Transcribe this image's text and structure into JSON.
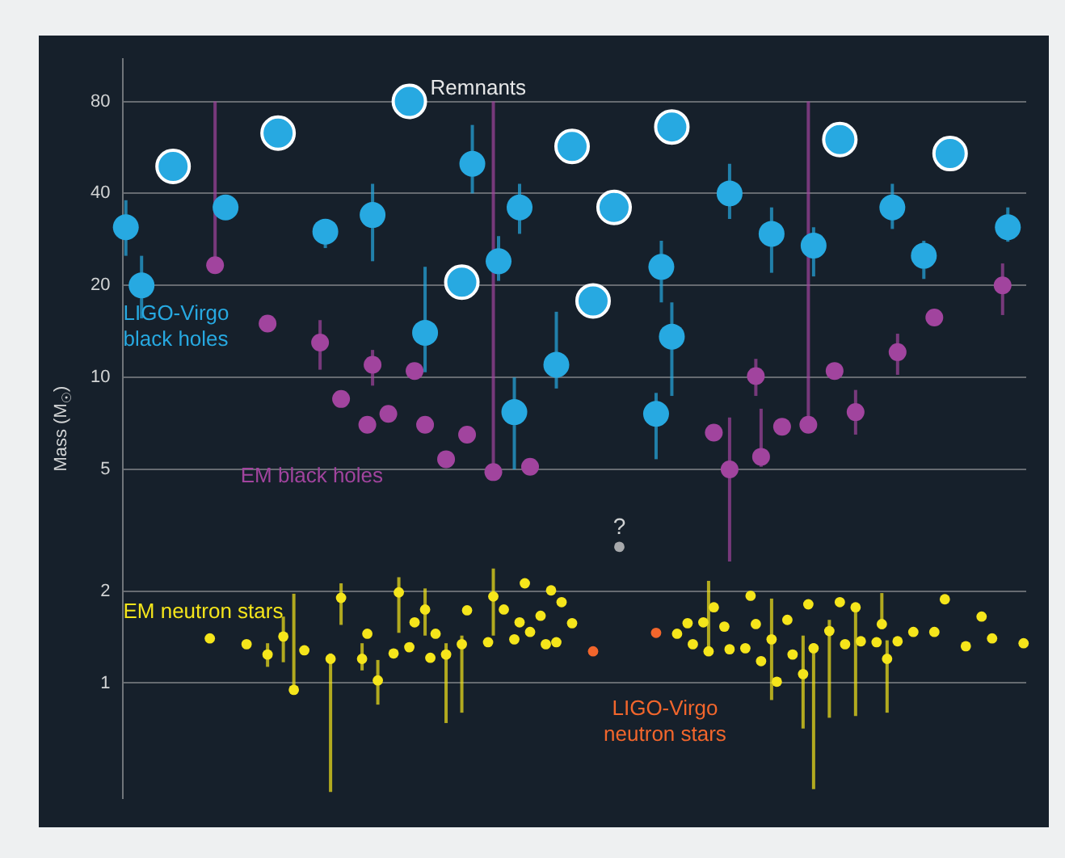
{
  "chart_data": {
    "type": "scatter",
    "ylabel": "Mass (M$_{☉}$)",
    "log": "y",
    "grid": "y",
    "legend": false,
    "tick_labels": "y",
    "marker": "circle",
    "ylim": [
      0.42,
      110
    ],
    "yticks": [
      1,
      2,
      5,
      10,
      20,
      40,
      80
    ],
    "annotations": [
      {
        "text": "?",
        "y": 2.79
      }
    ],
    "categories": [
      null,
      null,
      null,
      null,
      null,
      null,
      null,
      null,
      null,
      null,
      null,
      null,
      null,
      null,
      null,
      null,
      null,
      null,
      null,
      null,
      null,
      null,
      null,
      null,
      null,
      null,
      null,
      null,
      null,
      null,
      null,
      null,
      null,
      null,
      null,
      null,
      null,
      null,
      null,
      null,
      null,
      null,
      null,
      null,
      null,
      null,
      null,
      null,
      null,
      null,
      null,
      null,
      null,
      null,
      null,
      null,
      null,
      null,
      null,
      null,
      null,
      null,
      null,
      null,
      null,
      null,
      null,
      null,
      null,
      null,
      null,
      null,
      null,
      null,
      null,
      null,
      null,
      null,
      null,
      null,
      null,
      null,
      null,
      null,
      null,
      null,
      null,
      null,
      null,
      null,
      null,
      null,
      null,
      null,
      null,
      null,
      null,
      null,
      null,
      null,
      null,
      null,
      null,
      null,
      null,
      null,
      null,
      null,
      null,
      null,
      null,
      null,
      null,
      null,
      null,
      null,
      null,
      null,
      null,
      null,
      null,
      null,
      null,
      null,
      null,
      null,
      null,
      null,
      null,
      null,
      null,
      null,
      null,
      null,
      null,
      null,
      null,
      null,
      null,
      null,
      null,
      null,
      null,
      null,
      null,
      null,
      null,
      null,
      null,
      null,
      null,
      null,
      null,
      null,
      null,
      null,
      null,
      null,
      null,
      null,
      null,
      null,
      null,
      null,
      null,
      null,
      null,
      null,
      null,
      null,
      null,
      null
    ],
    "series": [
      {
        "name": "LIGO-Virgo black holes",
        "color": "#27a9e1",
        "values": [
          31,
          null,
          null,
          20,
          null,
          null,
          null,
          null,
          null,
          null,
          null,
          null,
          null,
          null,
          null,
          null,
          null,
          null,
          null,
          36,
          null,
          null,
          null,
          null,
          null,
          null,
          null,
          null,
          null,
          null,
          null,
          null,
          null,
          null,
          null,
          null,
          null,
          null,
          30,
          null,
          null,
          null,
          null,
          null,
          null,
          null,
          null,
          34,
          null,
          null,
          null,
          null,
          null,
          null,
          null,
          null,
          null,
          14,
          null,
          null,
          null,
          null,
          null,
          null,
          null,
          null,
          50,
          null,
          null,
          null,
          null,
          24,
          null,
          null,
          7.7,
          36,
          null,
          null,
          null,
          null,
          null,
          null,
          11,
          null,
          null,
          null,
          null,
          null,
          null,
          null,
          null,
          null,
          null,
          null,
          null,
          null,
          null,
          null,
          null,
          null,
          null,
          7.6,
          23,
          null,
          13.6,
          null,
          null,
          null,
          null,
          null,
          null,
          null,
          null,
          null,
          null,
          40,
          null,
          null,
          null,
          null,
          null,
          null,
          null,
          29.5,
          null,
          null,
          null,
          null,
          null,
          null,
          null,
          27,
          null,
          null,
          null,
          null,
          null,
          null,
          null,
          null,
          null,
          null,
          null,
          null,
          null,
          null,
          36,
          null,
          null,
          null,
          null,
          null,
          25,
          null,
          null,
          null,
          null,
          null,
          null,
          null,
          null,
          null,
          null,
          null,
          null,
          null,
          null,
          null,
          31,
          null,
          null,
          null
        ],
        "errors": [
          [
            25,
            38
          ],
          null,
          null,
          [
            15.6,
            25
          ],
          null,
          null,
          null,
          null,
          null,
          null,
          null,
          null,
          null,
          null,
          null,
          null,
          null,
          null,
          null,
          null,
          null,
          null,
          null,
          null,
          null,
          null,
          null,
          null,
          null,
          null,
          null,
          null,
          null,
          null,
          null,
          null,
          null,
          null,
          [
            26.5,
            33
          ],
          null,
          null,
          null,
          null,
          null,
          null,
          null,
          null,
          [
            24,
            43
          ],
          null,
          null,
          null,
          null,
          null,
          null,
          null,
          null,
          null,
          [
            10.4,
            23
          ],
          null,
          null,
          null,
          null,
          null,
          null,
          null,
          null,
          [
            40,
            67
          ],
          null,
          null,
          null,
          null,
          [
            20.7,
            29
          ],
          null,
          null,
          [
            5,
            10
          ],
          [
            29.5,
            43
          ],
          null,
          null,
          null,
          null,
          null,
          null,
          [
            9.2,
            16.4
          ],
          null,
          null,
          null,
          null,
          null,
          null,
          null,
          null,
          null,
          null,
          null,
          null,
          null,
          null,
          null,
          null,
          null,
          null,
          [
            5.4,
            8.9
          ],
          [
            17.6,
            28
          ],
          null,
          [
            8.7,
            17.6
          ],
          null,
          null,
          null,
          null,
          null,
          null,
          null,
          null,
          null,
          null,
          [
            33,
            50
          ],
          null,
          null,
          null,
          null,
          null,
          null,
          null,
          [
            22,
            36
          ],
          null,
          null,
          null,
          null,
          null,
          null,
          null,
          [
            21.4,
            31
          ],
          null,
          null,
          null,
          null,
          null,
          null,
          null,
          null,
          null,
          null,
          null,
          null,
          null,
          null,
          [
            30.6,
            43
          ],
          null,
          null,
          null,
          null,
          null,
          [
            21,
            28
          ],
          null,
          null,
          null,
          null,
          null,
          null,
          null,
          null,
          null,
          null,
          null,
          null,
          null,
          null,
          null,
          [
            27.8,
            36
          ],
          null,
          null,
          null
        ]
      },
      {
        "name": "Remnants",
        "color": "#27a9e1",
        "values": [
          null,
          null,
          null,
          null,
          null,
          null,
          null,
          null,
          null,
          49,
          null,
          null,
          null,
          null,
          null,
          null,
          null,
          null,
          null,
          null,
          null,
          null,
          null,
          null,
          null,
          null,
          null,
          null,
          null,
          63,
          null,
          null,
          null,
          null,
          null,
          null,
          null,
          null,
          null,
          null,
          null,
          null,
          null,
          null,
          null,
          null,
          null,
          null,
          null,
          null,
          null,
          null,
          null,
          null,
          80,
          null,
          null,
          null,
          null,
          null,
          null,
          null,
          null,
          null,
          20.5,
          null,
          null,
          null,
          null,
          null,
          null,
          null,
          null,
          null,
          null,
          null,
          null,
          null,
          null,
          null,
          null,
          null,
          null,
          null,
          null,
          57,
          null,
          null,
          null,
          17.8,
          null,
          null,
          null,
          36,
          null,
          null,
          null,
          null,
          null,
          null,
          null,
          null,
          null,
          null,
          66,
          null,
          null,
          null,
          null,
          null,
          null,
          null,
          null,
          null,
          null,
          null,
          null,
          null,
          null,
          null,
          null,
          null,
          null,
          null,
          null,
          null,
          null,
          null,
          null,
          null,
          null,
          null,
          null,
          null,
          null,
          null,
          60,
          null,
          null,
          null,
          null,
          null,
          null,
          null,
          null,
          null,
          null,
          null,
          null,
          null,
          null,
          null,
          null,
          null,
          null,
          null,
          null,
          54,
          null,
          null,
          null,
          null,
          null,
          null,
          null,
          null,
          null,
          null,
          null,
          null,
          null,
          null
        ]
      },
      {
        "name": "EM black holes",
        "color": "#a1449e",
        "values": [
          null,
          null,
          null,
          null,
          null,
          null,
          null,
          null,
          null,
          null,
          null,
          null,
          null,
          null,
          null,
          null,
          null,
          23.3,
          null,
          null,
          null,
          null,
          null,
          null,
          null,
          null,
          null,
          15,
          null,
          null,
          null,
          null,
          null,
          null,
          null,
          null,
          null,
          13,
          null,
          null,
          null,
          8.5,
          null,
          null,
          null,
          null,
          7,
          11,
          null,
          null,
          7.6,
          null,
          null,
          null,
          null,
          10.5,
          null,
          7,
          null,
          null,
          null,
          5.4,
          null,
          null,
          null,
          6.5,
          null,
          null,
          null,
          null,
          4.9,
          null,
          null,
          null,
          null,
          null,
          null,
          5.1,
          null,
          null,
          null,
          null,
          null,
          null,
          null,
          null,
          null,
          null,
          null,
          null,
          null,
          null,
          null,
          null,
          null,
          null,
          null,
          null,
          null,
          null,
          null,
          null,
          null,
          null,
          null,
          null,
          null,
          null,
          null,
          null,
          null,
          null,
          6.6,
          null,
          null,
          5,
          null,
          null,
          null,
          null,
          10.1,
          5.5,
          null,
          null,
          null,
          6.9,
          null,
          null,
          null,
          null,
          7,
          null,
          null,
          null,
          null,
          10.5,
          null,
          null,
          null,
          7.7,
          null,
          null,
          null,
          null,
          null,
          null,
          null,
          12.1,
          null,
          null,
          null,
          null,
          null,
          null,
          15.7,
          null,
          null,
          null,
          null,
          null,
          null,
          null,
          null,
          null,
          null,
          null,
          null,
          20,
          null,
          null,
          null,
          null
        ],
        "errors": [
          null,
          null,
          null,
          null,
          null,
          null,
          null,
          null,
          null,
          null,
          null,
          null,
          null,
          null,
          null,
          null,
          null,
          [
            23.3,
            80
          ],
          null,
          null,
          null,
          null,
          null,
          null,
          null,
          null,
          null,
          null,
          null,
          null,
          null,
          null,
          null,
          null,
          null,
          null,
          null,
          [
            10.6,
            15.4
          ],
          null,
          null,
          null,
          null,
          null,
          null,
          null,
          null,
          null,
          [
            9.4,
            12.3
          ],
          null,
          null,
          null,
          null,
          null,
          null,
          null,
          null,
          null,
          null,
          null,
          null,
          null,
          null,
          null,
          null,
          null,
          null,
          null,
          null,
          null,
          null,
          [
            4.9,
            80
          ],
          null,
          null,
          null,
          null,
          null,
          null,
          null,
          null,
          null,
          null,
          null,
          null,
          null,
          null,
          null,
          null,
          null,
          null,
          null,
          null,
          null,
          null,
          null,
          null,
          null,
          null,
          null,
          null,
          null,
          null,
          null,
          null,
          null,
          null,
          null,
          null,
          null,
          null,
          null,
          null,
          null,
          null,
          null,
          null,
          [
            2.5,
            7.4
          ],
          null,
          null,
          null,
          null,
          [
            8.7,
            11.5
          ],
          [
            5.1,
            7.9
          ],
          null,
          null,
          null,
          null,
          null,
          null,
          null,
          null,
          [
            7,
            80
          ],
          null,
          null,
          null,
          null,
          null,
          null,
          null,
          null,
          [
            6.5,
            9.1
          ],
          null,
          null,
          null,
          null,
          null,
          null,
          null,
          [
            10.2,
            13.9
          ],
          null,
          null,
          null,
          null,
          null,
          null,
          null,
          null,
          null,
          null,
          null,
          null,
          null,
          null,
          null,
          null,
          null,
          null,
          null,
          [
            16,
            23.6
          ],
          null,
          null,
          null,
          null
        ]
      },
      {
        "name": "EM neutron stars",
        "color": "#f5e51b",
        "values": [
          null,
          null,
          null,
          null,
          null,
          null,
          null,
          null,
          null,
          null,
          null,
          null,
          null,
          null,
          null,
          null,
          1.4,
          null,
          null,
          null,
          null,
          null,
          null,
          1.34,
          null,
          null,
          null,
          1.24,
          null,
          null,
          1.42,
          null,
          0.95,
          null,
          1.28,
          null,
          null,
          null,
          null,
          1.2,
          null,
          1.9,
          null,
          null,
          null,
          1.2,
          1.45,
          null,
          1.02,
          null,
          null,
          1.25,
          1.98,
          null,
          1.31,
          1.58,
          null,
          1.74,
          1.21,
          1.45,
          null,
          1.24,
          null,
          null,
          1.34,
          1.73,
          null,
          null,
          null,
          1.36,
          1.92,
          null,
          1.74,
          null,
          1.39,
          1.58,
          2.12,
          1.47,
          null,
          1.66,
          1.34,
          2.01,
          1.36,
          1.84,
          null,
          1.57,
          null,
          null,
          null,
          null,
          null,
          null,
          null,
          null,
          null,
          null,
          null,
          null,
          null,
          null,
          null,
          null,
          null,
          null,
          null,
          1.45,
          null,
          1.57,
          1.34,
          null,
          1.58,
          1.27,
          1.77,
          null,
          1.53,
          1.29,
          null,
          null,
          1.3,
          1.93,
          1.56,
          1.18,
          null,
          1.39,
          1.01,
          null,
          1.61,
          1.24,
          null,
          1.07,
          1.81,
          1.3,
          null,
          null,
          1.48,
          null,
          1.84,
          1.34,
          null,
          1.77,
          1.37,
          null,
          null,
          1.36,
          1.56,
          1.2,
          null,
          1.37,
          null,
          null,
          1.47,
          null,
          null,
          null,
          1.47,
          null,
          1.88,
          null,
          null,
          null,
          1.32,
          null,
          null,
          1.65,
          null,
          1.4,
          null,
          null,
          null,
          null,
          null,
          1.35
        ],
        "errors": [
          null,
          null,
          null,
          null,
          null,
          null,
          null,
          null,
          null,
          null,
          null,
          null,
          null,
          null,
          null,
          null,
          null,
          null,
          null,
          null,
          null,
          null,
          null,
          null,
          null,
          null,
          null,
          [
            1.13,
            1.35
          ],
          null,
          null,
          [
            1.17,
            1.65
          ],
          null,
          [
            0.95,
            1.96
          ],
          null,
          null,
          null,
          null,
          null,
          null,
          [
            0.44,
            1.25
          ],
          null,
          [
            1.55,
            2.12
          ],
          null,
          null,
          null,
          [
            1.1,
            1.35
          ],
          null,
          null,
          [
            0.85,
            1.19
          ],
          null,
          null,
          null,
          [
            1.46,
            2.22
          ],
          null,
          null,
          null,
          null,
          [
            1.43,
            2.04
          ],
          null,
          null,
          null,
          [
            0.74,
            1.35
          ],
          null,
          null,
          [
            0.8,
            1.43
          ],
          null,
          null,
          null,
          null,
          null,
          [
            1.43,
            2.37
          ],
          null,
          null,
          null,
          null,
          null,
          null,
          null,
          null,
          null,
          null,
          null,
          null,
          null,
          null,
          null,
          null,
          null,
          null,
          null,
          null,
          null,
          null,
          null,
          null,
          null,
          null,
          null,
          null,
          null,
          null,
          null,
          null,
          null,
          null,
          null,
          null,
          null,
          null,
          null,
          null,
          [
            1.27,
            2.16
          ],
          null,
          null,
          null,
          null,
          null,
          null,
          null,
          null,
          null,
          null,
          null,
          [
            0.88,
            1.89
          ],
          null,
          null,
          null,
          null,
          null,
          [
            0.71,
            1.43
          ],
          null,
          [
            0.45,
            1.35
          ],
          null,
          null,
          [
            0.77,
            1.61
          ],
          null,
          null,
          null,
          null,
          [
            0.78,
            1.81
          ],
          null,
          null,
          null,
          null,
          [
            1.5,
            1.97
          ],
          [
            0.8,
            1.38
          ],
          null,
          null,
          null,
          null,
          null,
          null,
          null,
          null,
          null,
          null,
          null,
          null,
          null,
          null,
          null,
          null,
          null,
          null,
          null,
          null,
          null,
          null,
          null,
          null,
          null,
          null
        ]
      },
      {
        "name": "LIGO-Virgo neutron stars",
        "color": "#f2662c",
        "values": [
          null,
          null,
          null,
          null,
          null,
          null,
          null,
          null,
          null,
          null,
          null,
          null,
          null,
          null,
          null,
          null,
          null,
          null,
          null,
          null,
          null,
          null,
          null,
          null,
          null,
          null,
          null,
          null,
          null,
          null,
          null,
          null,
          null,
          null,
          null,
          null,
          null,
          null,
          null,
          null,
          null,
          null,
          null,
          null,
          null,
          null,
          null,
          null,
          null,
          null,
          null,
          null,
          null,
          null,
          null,
          null,
          null,
          null,
          null,
          null,
          null,
          null,
          null,
          null,
          null,
          null,
          null,
          null,
          null,
          null,
          null,
          null,
          null,
          null,
          null,
          null,
          null,
          null,
          null,
          null,
          null,
          null,
          null,
          null,
          null,
          null,
          null,
          null,
          null,
          1.27,
          null,
          null,
          null,
          null,
          null,
          null,
          null,
          null,
          null,
          null,
          null,
          1.46,
          null,
          null,
          null,
          null,
          null,
          null,
          null,
          null,
          null,
          null,
          null,
          null,
          null,
          null,
          null,
          null,
          null,
          null,
          null,
          null,
          null,
          null,
          null,
          null,
          null,
          null,
          null,
          null,
          null,
          null,
          null,
          null,
          null,
          null,
          null,
          null,
          null,
          null,
          null,
          null,
          null,
          null,
          null,
          null,
          null,
          null,
          null,
          null,
          null,
          null,
          null,
          null,
          null,
          null,
          null,
          null,
          null,
          null,
          null,
          null,
          null,
          null,
          null,
          null,
          null,
          null,
          null,
          null,
          null,
          null
        ]
      },
      {
        "color": "#a7a9ac",
        "values": [
          null,
          null,
          null,
          null,
          null,
          null,
          null,
          null,
          null,
          null,
          null,
          null,
          null,
          null,
          null,
          null,
          null,
          null,
          null,
          null,
          null,
          null,
          null,
          null,
          null,
          null,
          null,
          null,
          null,
          null,
          null,
          null,
          null,
          null,
          null,
          null,
          null,
          null,
          null,
          null,
          null,
          null,
          null,
          null,
          null,
          null,
          null,
          null,
          null,
          null,
          null,
          null,
          null,
          null,
          null,
          null,
          null,
          null,
          null,
          null,
          null,
          null,
          null,
          null,
          null,
          null,
          null,
          null,
          null,
          null,
          null,
          null,
          null,
          null,
          null,
          null,
          null,
          null,
          null,
          null,
          null,
          null,
          null,
          null,
          null,
          null,
          null,
          null,
          null,
          null,
          null,
          null,
          null,
          null,
          2.79,
          null,
          null,
          null,
          null,
          null,
          null,
          null,
          null,
          null,
          null,
          null,
          null,
          null,
          null,
          null,
          null,
          null,
          null,
          null,
          null,
          null,
          null,
          null,
          null,
          null,
          null,
          null,
          null,
          null,
          null,
          null,
          null,
          null,
          null,
          null,
          null,
          null,
          null,
          null,
          null,
          null,
          null,
          null,
          null,
          null,
          null,
          null,
          null,
          null,
          null,
          null,
          null,
          null,
          null,
          null,
          null,
          null,
          null,
          null,
          null,
          null,
          null,
          null,
          null,
          null,
          null,
          null,
          null,
          null,
          null,
          null,
          null,
          null,
          null,
          null,
          null,
          null
        ]
      }
    ]
  }
}
